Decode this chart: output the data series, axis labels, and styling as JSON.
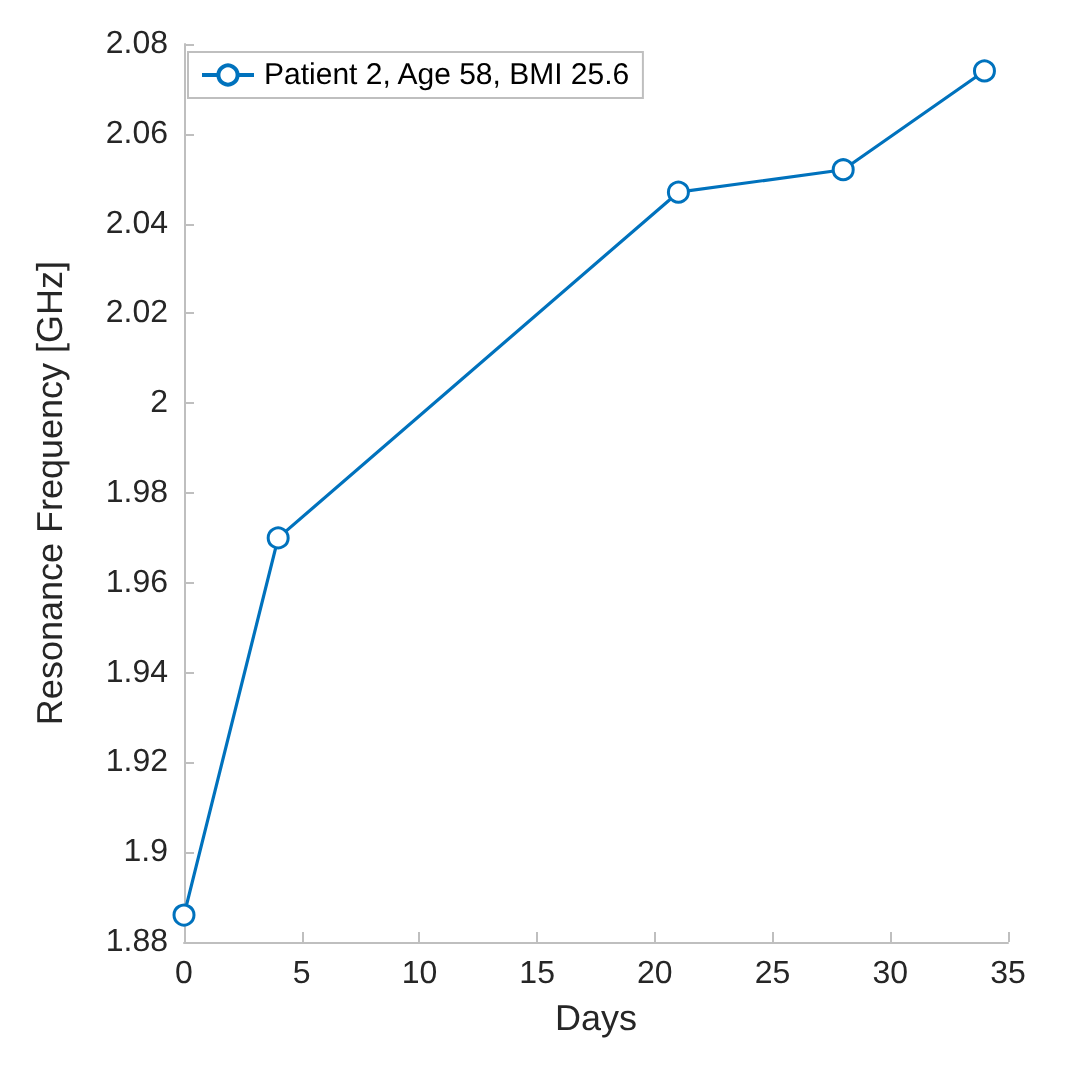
{
  "chart_data": {
    "type": "line",
    "xlabel": "Days",
    "ylabel": "Resonance Frequency [GHz]",
    "x": [
      0,
      4,
      21,
      28,
      34
    ],
    "series": [
      {
        "name": "Patient 2, Age 58, BMI 25.6",
        "color": "#0072bd",
        "values": [
          1.886,
          1.97,
          2.047,
          2.052,
          2.074
        ]
      }
    ],
    "xlim": [
      0,
      35
    ],
    "xticks": [
      0,
      5,
      10,
      15,
      20,
      25,
      30,
      35
    ],
    "ylim": [
      1.88,
      2.08
    ],
    "yticks": [
      1.88,
      1.9,
      1.92,
      1.94,
      1.96,
      1.98,
      2,
      2.02,
      2.04,
      2.06,
      2.08
    ],
    "grid": false,
    "legend": "top left",
    "marker": "circle",
    "line_style": "solid"
  }
}
